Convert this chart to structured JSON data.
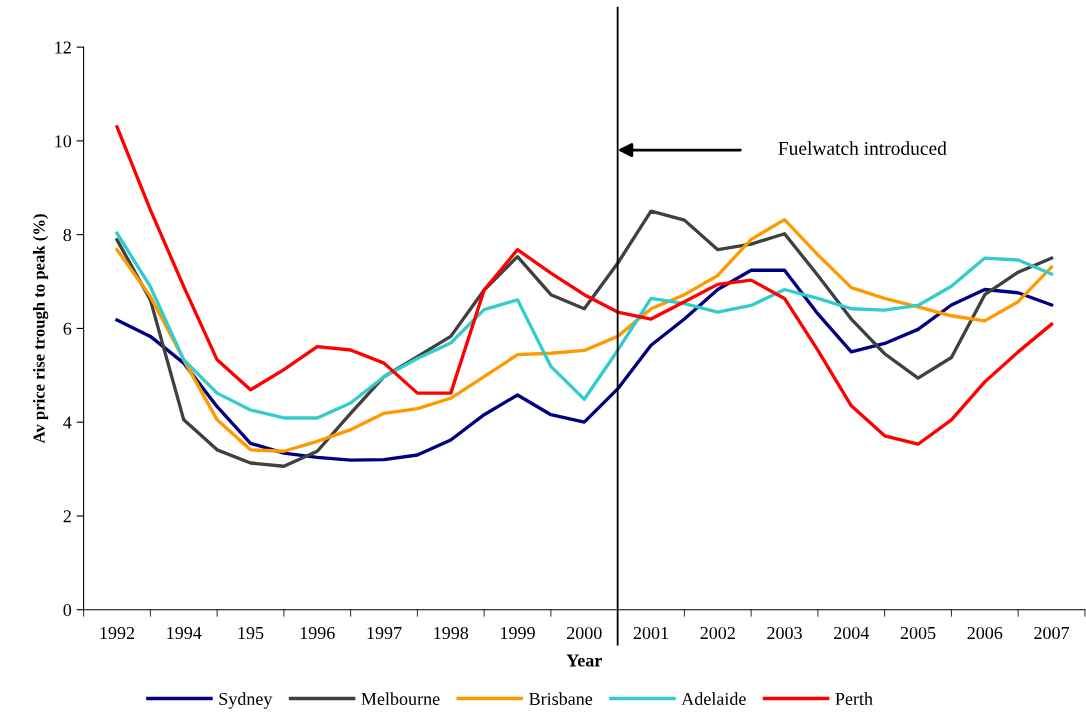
{
  "chart_data": {
    "type": "line",
    "xlabel": "Year",
    "ylabel": "Av price rise trough to peak (%)",
    "categories": [
      "1992",
      null,
      "1994",
      null,
      "195",
      null,
      "1996",
      null,
      "1997",
      null,
      "1998",
      null,
      "1999",
      null,
      "2000",
      null,
      "2001",
      null,
      "2002",
      null,
      "2003",
      null,
      "2004",
      null,
      "2005",
      null,
      "2006",
      null,
      "2007"
    ],
    "ylim": [
      0,
      12
    ],
    "yticks": [
      0,
      2,
      4,
      6,
      8,
      10,
      12
    ],
    "legend": "bottom",
    "line_style": "solid",
    "marker": "none",
    "annotations": [
      "Fuelwatch introduced"
    ],
    "series": [
      {
        "name": "Sydney",
        "color": "#000080",
        "values": [
          6.18,
          5.83,
          5.26,
          4.33,
          3.55,
          3.34,
          3.25,
          3.19,
          3.2,
          3.3,
          3.62,
          4.16,
          4.58,
          4.16,
          4.0,
          4.71,
          5.64,
          6.2,
          6.83,
          7.24,
          7.24,
          6.31,
          5.5,
          5.68,
          5.98,
          6.5,
          6.83,
          6.76,
          6.5
        ]
      },
      {
        "name": "Melbourne",
        "color": "#404040",
        "values": [
          7.89,
          6.61,
          4.05,
          3.41,
          3.13,
          3.06,
          3.38,
          4.19,
          4.97,
          5.4,
          5.83,
          6.82,
          7.53,
          6.72,
          6.42,
          7.39,
          8.5,
          8.31,
          7.68,
          7.8,
          8.02,
          7.13,
          6.2,
          5.46,
          4.94,
          5.38,
          6.72,
          7.2,
          7.5
        ]
      },
      {
        "name": "Brisbane",
        "color": "#ff9900",
        "values": [
          7.68,
          6.68,
          5.33,
          4.05,
          3.41,
          3.38,
          3.59,
          3.84,
          4.19,
          4.29,
          4.51,
          4.97,
          5.44,
          5.47,
          5.53,
          5.83,
          6.42,
          6.72,
          7.13,
          7.9,
          8.32,
          7.57,
          6.87,
          6.64,
          6.46,
          6.27,
          6.16,
          6.57,
          7.31
        ]
      },
      {
        "name": "Adelaide",
        "color": "#33cccc",
        "values": [
          8.03,
          6.89,
          5.33,
          4.62,
          4.26,
          4.09,
          4.09,
          4.41,
          4.97,
          5.36,
          5.69,
          6.4,
          6.61,
          5.19,
          4.49,
          5.53,
          6.64,
          6.53,
          6.35,
          6.49,
          6.83,
          6.64,
          6.42,
          6.39,
          6.49,
          6.9,
          7.5,
          7.46,
          7.16
        ]
      },
      {
        "name": "Perth",
        "color": "#ff0000",
        "values": [
          10.3,
          8.53,
          6.89,
          5.33,
          4.69,
          5.12,
          5.61,
          5.54,
          5.26,
          4.62,
          4.62,
          6.82,
          7.68,
          7.18,
          6.72,
          6.35,
          6.2,
          6.57,
          6.94,
          7.03,
          6.64,
          5.53,
          4.35,
          3.71,
          3.53,
          4.05,
          4.86,
          5.5,
          6.09
        ]
      }
    ]
  }
}
